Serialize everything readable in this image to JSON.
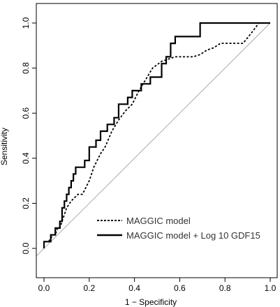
{
  "chart_data": {
    "type": "line",
    "title": "",
    "xlabel": "1 − Specificity",
    "ylabel": "Sensitivity",
    "xlim": [
      0,
      1
    ],
    "ylim": [
      0,
      1
    ],
    "x_ticks": [
      "0.0",
      "0.2",
      "0.4",
      "0.6",
      "0.8",
      "1.0"
    ],
    "y_ticks": [
      "0.0",
      "0.2",
      "0.4",
      "0.6",
      "0.8",
      "1.0"
    ],
    "grid": false,
    "legend_position": "bottom-right",
    "reference_line": {
      "x": [
        -0.05,
        1.0
      ],
      "y": [
        -0.05,
        1.0
      ],
      "color": "#aaaaaa"
    },
    "series": [
      {
        "name": "MAGGIC model",
        "style": "dotted",
        "color": "#000000",
        "x": [
          0.0,
          0.0,
          0.02,
          0.04,
          0.05,
          0.06,
          0.07,
          0.08,
          0.09,
          0.1,
          0.12,
          0.15,
          0.17,
          0.2,
          0.22,
          0.25,
          0.27,
          0.3,
          0.33,
          0.36,
          0.39,
          0.42,
          0.45,
          0.48,
          0.52,
          0.55,
          0.58,
          0.62,
          0.66,
          0.69,
          0.72,
          0.75,
          0.78,
          0.82,
          0.85,
          0.88,
          0.92,
          0.95,
          1.0
        ],
        "y": [
          0.0,
          0.03,
          0.03,
          0.06,
          0.06,
          0.09,
          0.09,
          0.12,
          0.15,
          0.18,
          0.21,
          0.24,
          0.24,
          0.3,
          0.36,
          0.42,
          0.45,
          0.52,
          0.57,
          0.61,
          0.64,
          0.7,
          0.75,
          0.8,
          0.83,
          0.84,
          0.85,
          0.85,
          0.85,
          0.86,
          0.88,
          0.89,
          0.91,
          0.91,
          0.91,
          0.91,
          0.96,
          1.0,
          1.0
        ]
      },
      {
        "name": "MAGGIC model + Log 10 GDF15",
        "style": "solid",
        "color": "#000000",
        "x": [
          0.0,
          0.0,
          0.03,
          0.03,
          0.05,
          0.05,
          0.07,
          0.07,
          0.08,
          0.08,
          0.09,
          0.09,
          0.1,
          0.1,
          0.11,
          0.11,
          0.12,
          0.12,
          0.13,
          0.13,
          0.14,
          0.14,
          0.18,
          0.18,
          0.2,
          0.2,
          0.23,
          0.23,
          0.25,
          0.25,
          0.28,
          0.28,
          0.31,
          0.31,
          0.33,
          0.33,
          0.37,
          0.37,
          0.39,
          0.39,
          0.43,
          0.43,
          0.47,
          0.47,
          0.52,
          0.52,
          0.54,
          0.54,
          0.56,
          0.56,
          0.58,
          0.58,
          0.69,
          0.69,
          1.0
        ],
        "y": [
          0.0,
          0.03,
          0.03,
          0.06,
          0.06,
          0.09,
          0.09,
          0.12,
          0.12,
          0.18,
          0.18,
          0.21,
          0.21,
          0.24,
          0.24,
          0.27,
          0.27,
          0.3,
          0.3,
          0.33,
          0.33,
          0.36,
          0.36,
          0.39,
          0.39,
          0.45,
          0.45,
          0.48,
          0.48,
          0.52,
          0.52,
          0.55,
          0.55,
          0.58,
          0.58,
          0.64,
          0.64,
          0.67,
          0.67,
          0.7,
          0.7,
          0.73,
          0.73,
          0.76,
          0.76,
          0.82,
          0.82,
          0.85,
          0.85,
          0.91,
          0.91,
          0.94,
          0.94,
          1.0,
          1.0
        ]
      }
    ]
  }
}
